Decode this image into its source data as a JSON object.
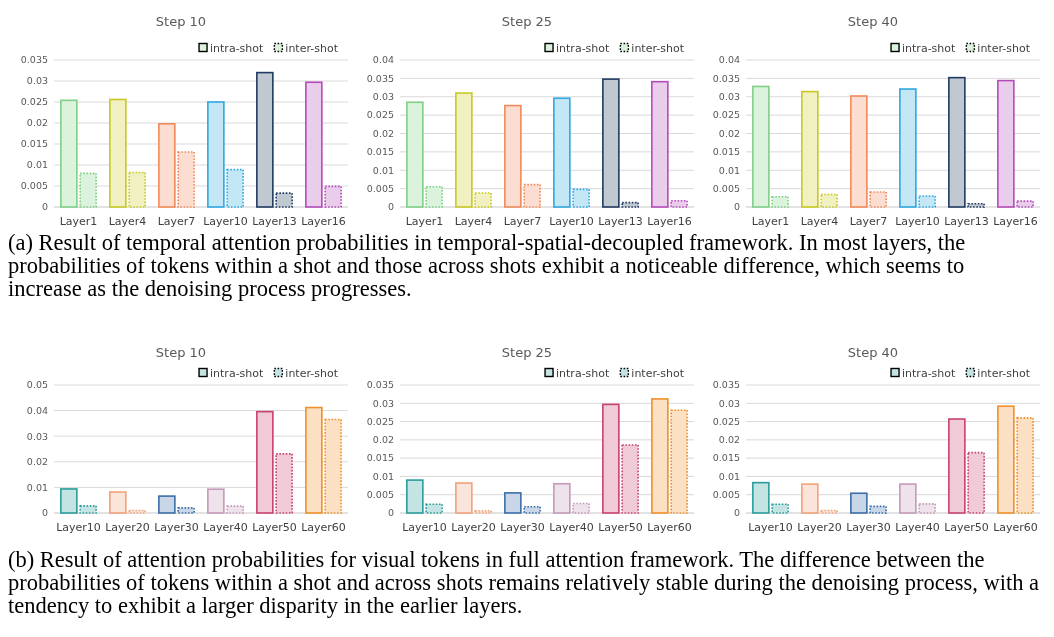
{
  "chart_data": [
    {
      "type": "bar",
      "title": "Step 10",
      "categories": [
        "Layer1",
        "Layer4",
        "Layer7",
        "Layer10",
        "Layer13",
        "Layer16"
      ],
      "ylim": [
        0,
        0.035
      ],
      "yticks": [
        0,
        0.005,
        0.01,
        0.015,
        0.02,
        0.025,
        0.03,
        0.035
      ],
      "grid": "y",
      "legend": "top right",
      "series": [
        {
          "name": "intra-shot",
          "line_style": "solid",
          "colors": [
            "#7fcf85",
            "#c8c820",
            "#f08a5a",
            "#2ea8e0",
            "#1f3a60",
            "#b44cb8"
          ],
          "values": [
            0.0254,
            0.0256,
            0.0198,
            0.025,
            0.032,
            0.0297
          ]
        },
        {
          "name": "inter-shot",
          "line_style": "dotted",
          "colors": [
            "#7fcf85",
            "#c8c820",
            "#f08a5a",
            "#2ea8e0",
            "#1f3a60",
            "#b44cb8"
          ],
          "values": [
            0.008,
            0.0082,
            0.0131,
            0.0089,
            0.0033,
            0.0049
          ]
        }
      ],
      "annotations": [
        "(a) Result of temporal attention probabilities in temporal-spatial-decoupled framework. In most layers, the probabilities of tokens within a shot and those across shots exhibit a noticeable difference, which seems to increase as the denoising process progresses."
      ]
    },
    {
      "type": "bar",
      "title": "Step 25",
      "categories": [
        "Layer1",
        "Layer4",
        "Layer7",
        "Layer10",
        "Layer13",
        "Layer16"
      ],
      "ylim": [
        0,
        0.04
      ],
      "yticks": [
        0,
        0.005,
        0.01,
        0.015,
        0.02,
        0.025,
        0.03,
        0.035,
        0.04
      ],
      "grid": "y",
      "legend": "top right",
      "series": [
        {
          "name": "intra-shot",
          "line_style": "solid",
          "colors": [
            "#7fcf85",
            "#c8c820",
            "#f08a5a",
            "#2ea8e0",
            "#1f3a60",
            "#b44cb8"
          ],
          "values": [
            0.0285,
            0.031,
            0.0276,
            0.0296,
            0.0348,
            0.0341
          ]
        },
        {
          "name": "inter-shot",
          "line_style": "dotted",
          "colors": [
            "#7fcf85",
            "#c8c820",
            "#f08a5a",
            "#2ea8e0",
            "#1f3a60",
            "#b44cb8"
          ],
          "values": [
            0.0055,
            0.0038,
            0.0061,
            0.0048,
            0.0012,
            0.0017
          ]
        }
      ]
    },
    {
      "type": "bar",
      "title": "Step 40",
      "categories": [
        "Layer1",
        "Layer4",
        "Layer7",
        "Layer10",
        "Layer13",
        "Layer16"
      ],
      "ylim": [
        0,
        0.04
      ],
      "yticks": [
        0,
        0.005,
        0.01,
        0.015,
        0.02,
        0.025,
        0.03,
        0.035,
        0.04
      ],
      "grid": "y",
      "legend": "top right",
      "series": [
        {
          "name": "intra-shot",
          "line_style": "solid",
          "colors": [
            "#7fcf85",
            "#c8c820",
            "#f08a5a",
            "#2ea8e0",
            "#1f3a60",
            "#b44cb8"
          ],
          "values": [
            0.0328,
            0.0314,
            0.0302,
            0.0321,
            0.0352,
            0.0344
          ]
        },
        {
          "name": "inter-shot",
          "line_style": "dotted",
          "colors": [
            "#7fcf85",
            "#c8c820",
            "#f08a5a",
            "#2ea8e0",
            "#1f3a60",
            "#b44cb8"
          ],
          "values": [
            0.0028,
            0.0034,
            0.0041,
            0.003,
            0.0009,
            0.0016
          ]
        }
      ]
    },
    {
      "type": "bar",
      "title": "Step 10",
      "categories": [
        "Layer10",
        "Layer20",
        "Layer30",
        "Layer40",
        "Layer50",
        "Layer60"
      ],
      "ylim": [
        0,
        0.05
      ],
      "yticks": [
        0,
        0.01,
        0.02,
        0.03,
        0.04,
        0.05
      ],
      "grid": "y",
      "legend": "top right",
      "series": [
        {
          "name": "intra-shot",
          "line_style": "solid",
          "colors": [
            "#2a9d9a",
            "#f2a27a",
            "#3a6ea8",
            "#c49ab8",
            "#c8426e",
            "#f0902a"
          ],
          "values": [
            0.0094,
            0.0082,
            0.0066,
            0.0093,
            0.0396,
            0.0412
          ]
        },
        {
          "name": "inter-shot",
          "line_style": "dotted",
          "colors": [
            "#2a9d9a",
            "#f2a27a",
            "#3a6ea8",
            "#c49ab8",
            "#c8426e",
            "#f0902a"
          ],
          "values": [
            0.0028,
            0.001,
            0.002,
            0.0027,
            0.0231,
            0.0365
          ]
        }
      ],
      "annotations": [
        "(b) Result of attention probabilities for visual tokens in full attention framework. The difference between the probabilities of tokens within a shot and across shots remains relatively stable during the denoising process, with a tendency to exhibit a larger disparity in the earlier layers."
      ]
    },
    {
      "type": "bar",
      "title": "Step 25",
      "categories": [
        "Layer10",
        "Layer20",
        "Layer30",
        "Layer40",
        "Layer50",
        "Layer60"
      ],
      "ylim": [
        0,
        0.035
      ],
      "yticks": [
        0,
        0.005,
        0.01,
        0.015,
        0.02,
        0.025,
        0.03,
        0.035
      ],
      "grid": "y",
      "legend": "top right",
      "series": [
        {
          "name": "intra-shot",
          "line_style": "solid",
          "colors": [
            "#2a9d9a",
            "#f2a27a",
            "#3a6ea8",
            "#c49ab8",
            "#c8426e",
            "#f0902a"
          ],
          "values": [
            0.009,
            0.0082,
            0.0055,
            0.008,
            0.0297,
            0.0312
          ]
        },
        {
          "name": "inter-shot",
          "line_style": "dotted",
          "colors": [
            "#2a9d9a",
            "#f2a27a",
            "#3a6ea8",
            "#c49ab8",
            "#c8426e",
            "#f0902a"
          ],
          "values": [
            0.0024,
            0.0006,
            0.0017,
            0.0026,
            0.0186,
            0.0281
          ]
        }
      ]
    },
    {
      "type": "bar",
      "title": "Step 40",
      "categories": [
        "Layer10",
        "Layer20",
        "Layer30",
        "Layer40",
        "Layer50",
        "Layer60"
      ],
      "ylim": [
        0,
        0.035
      ],
      "yticks": [
        0,
        0.005,
        0.01,
        0.015,
        0.02,
        0.025,
        0.03,
        0.035
      ],
      "grid": "y",
      "legend": "top right",
      "series": [
        {
          "name": "intra-shot",
          "line_style": "solid",
          "colors": [
            "#2a9d9a",
            "#f2a27a",
            "#3a6ea8",
            "#c49ab8",
            "#c8426e",
            "#f0902a"
          ],
          "values": [
            0.0083,
            0.0079,
            0.0054,
            0.0079,
            0.0257,
            0.0292
          ]
        },
        {
          "name": "inter-shot",
          "line_style": "dotted",
          "colors": [
            "#2a9d9a",
            "#f2a27a",
            "#3a6ea8",
            "#c49ab8",
            "#c8426e",
            "#f0902a"
          ],
          "values": [
            0.0024,
            0.0007,
            0.0018,
            0.0025,
            0.0165,
            0.026
          ]
        }
      ]
    }
  ]
}
